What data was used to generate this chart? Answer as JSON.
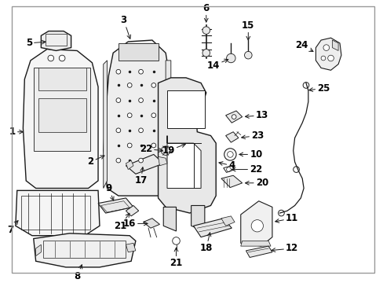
{
  "background_color": "#ffffff",
  "line_color": "#1a1a1a",
  "label_color": "#000000",
  "figsize": [
    4.89,
    3.6
  ],
  "dpi": 100,
  "border_color": "#aaaaaa",
  "font_size": 8.5,
  "font_size_small": 7.5
}
